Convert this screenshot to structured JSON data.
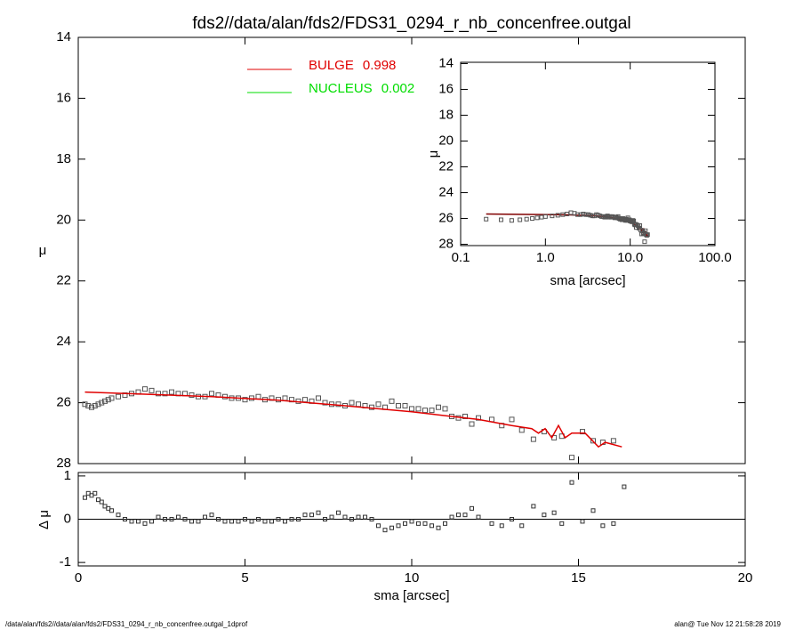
{
  "chart_data": [
    {
      "type": "scatter",
      "title": "fds2//data/alan/fds2/FDS31_0294_r_nb_concenfree.outgal",
      "ylabel": "μ",
      "xlim": [
        0,
        20
      ],
      "ylim": [
        28,
        14
      ],
      "yticks": [
        14,
        16,
        18,
        20,
        22,
        24,
        26,
        28
      ],
      "x": [
        0.2,
        0.3,
        0.4,
        0.5,
        0.6,
        0.7,
        0.8,
        0.9,
        1.0,
        1.2,
        1.4,
        1.6,
        1.8,
        2.0,
        2.2,
        2.4,
        2.6,
        2.8,
        3.0,
        3.2,
        3.4,
        3.6,
        3.8,
        4.0,
        4.2,
        4.4,
        4.6,
        4.8,
        5.0,
        5.2,
        5.4,
        5.6,
        5.8,
        6.0,
        6.2,
        6.4,
        6.6,
        6.8,
        7.0,
        7.2,
        7.4,
        7.6,
        7.8,
        8.0,
        8.2,
        8.4,
        8.6,
        8.8,
        9.0,
        9.2,
        9.4,
        9.6,
        9.8,
        10.0,
        10.2,
        10.4,
        10.6,
        10.8,
        11.0,
        11.2,
        11.4,
        11.6,
        11.8,
        12.0,
        12.4,
        12.7,
        13.0,
        13.3,
        13.65,
        13.97,
        14.27,
        14.5,
        14.8,
        15.12,
        15.44,
        15.73,
        16.05,
        16.37
      ],
      "values": [
        26.05,
        26.1,
        26.15,
        26.1,
        26.05,
        26.0,
        25.95,
        25.9,
        25.85,
        25.8,
        25.75,
        25.7,
        25.65,
        25.55,
        25.6,
        25.7,
        25.7,
        25.65,
        25.7,
        25.7,
        25.75,
        25.8,
        25.8,
        25.7,
        25.75,
        25.8,
        25.85,
        25.85,
        25.9,
        25.85,
        25.8,
        25.9,
        25.85,
        25.9,
        25.85,
        25.9,
        25.95,
        25.9,
        25.95,
        25.85,
        26.0,
        26.05,
        26.05,
        26.1,
        26.0,
        26.05,
        26.1,
        26.15,
        26.05,
        26.15,
        25.95,
        26.1,
        26.1,
        26.2,
        26.2,
        26.25,
        26.25,
        26.15,
        26.2,
        26.45,
        26.5,
        26.45,
        26.7,
        26.5,
        26.55,
        26.75,
        26.55,
        26.9,
        27.2,
        26.95,
        27.15,
        27.1,
        27.8,
        26.95,
        27.25,
        27.3,
        27.25,
        null
      ],
      "color": "#555555",
      "models": [
        {
          "name": "BULGE",
          "fraction": 0.998,
          "color": "#e00000",
          "x": [
            0.2,
            2,
            4,
            6,
            8,
            10,
            12,
            13,
            13.6,
            13.8,
            14.0,
            14.2,
            14.4,
            14.6,
            14.8,
            15.2,
            15.6,
            15.8,
            16.3
          ],
          "values": [
            25.65,
            25.72,
            25.8,
            25.92,
            26.1,
            26.3,
            26.55,
            26.75,
            26.85,
            27.0,
            26.85,
            27.15,
            26.75,
            27.15,
            27.0,
            27.0,
            27.45,
            27.3,
            27.45
          ]
        },
        {
          "name": "NUCLEUS",
          "fraction": 0.002,
          "color": "#00dd00"
        }
      ]
    },
    {
      "type": "residual",
      "ylabel": "Δ μ",
      "xlabel": "sma [arcsec]",
      "xlim": [
        0,
        20
      ],
      "xticks": [
        0,
        5,
        10,
        15,
        20
      ],
      "ylim": [
        -1.08,
        1.08
      ],
      "yticks": [
        -1,
        0,
        1
      ],
      "values": [
        0.5,
        0.6,
        0.55,
        0.6,
        0.45,
        0.4,
        0.3,
        0.25,
        0.2,
        0.1,
        0.0,
        -0.05,
        -0.05,
        -0.1,
        -0.05,
        0.05,
        0.0,
        0.0,
        0.05,
        0.0,
        -0.05,
        -0.05,
        0.05,
        0.1,
        0.0,
        -0.05,
        -0.05,
        -0.05,
        0.0,
        -0.05,
        0.0,
        -0.05,
        -0.05,
        0.0,
        -0.05,
        0.0,
        0.0,
        0.1,
        0.1,
        0.15,
        0.0,
        0.05,
        0.15,
        0.05,
        0.0,
        0.05,
        0.05,
        0.0,
        -0.15,
        -0.25,
        -0.2,
        -0.15,
        -0.1,
        -0.05,
        -0.1,
        -0.1,
        -0.15,
        -0.2,
        -0.1,
        0.05,
        0.1,
        0.1,
        0.25,
        0.05,
        -0.1,
        -0.15,
        0.0,
        -0.15,
        0.3,
        0.1,
        0.15,
        -0.1,
        0.85,
        -0.05,
        0.2,
        -0.15,
        -0.1,
        0.75
      ],
      "color": "#333333",
      "zero_line": true
    },
    {
      "type": "inset",
      "ylabel": "μ",
      "xlabel": "sma [arcsec]",
      "log_x": true,
      "xlim": [
        0.1,
        100
      ],
      "xticks": [
        0.1,
        {
          "value": 1,
          "label": "1.0"
        },
        {
          "value": 10,
          "label": "10.0"
        },
        {
          "value": 100,
          "label": "100.0"
        }
      ],
      "ylim": [
        28.1,
        13.9
      ],
      "yticks": [
        14,
        16,
        18,
        20,
        22,
        24,
        26,
        28
      ],
      "line_color": "#800000"
    }
  ],
  "footer": {
    "left": "/data/alan/fds2//data/alan/fds2/FDS31_0294_r_nb_concenfree.outgal_1dprof",
    "right": "alan@  Tue Nov 12 21:58:28 2019"
  }
}
